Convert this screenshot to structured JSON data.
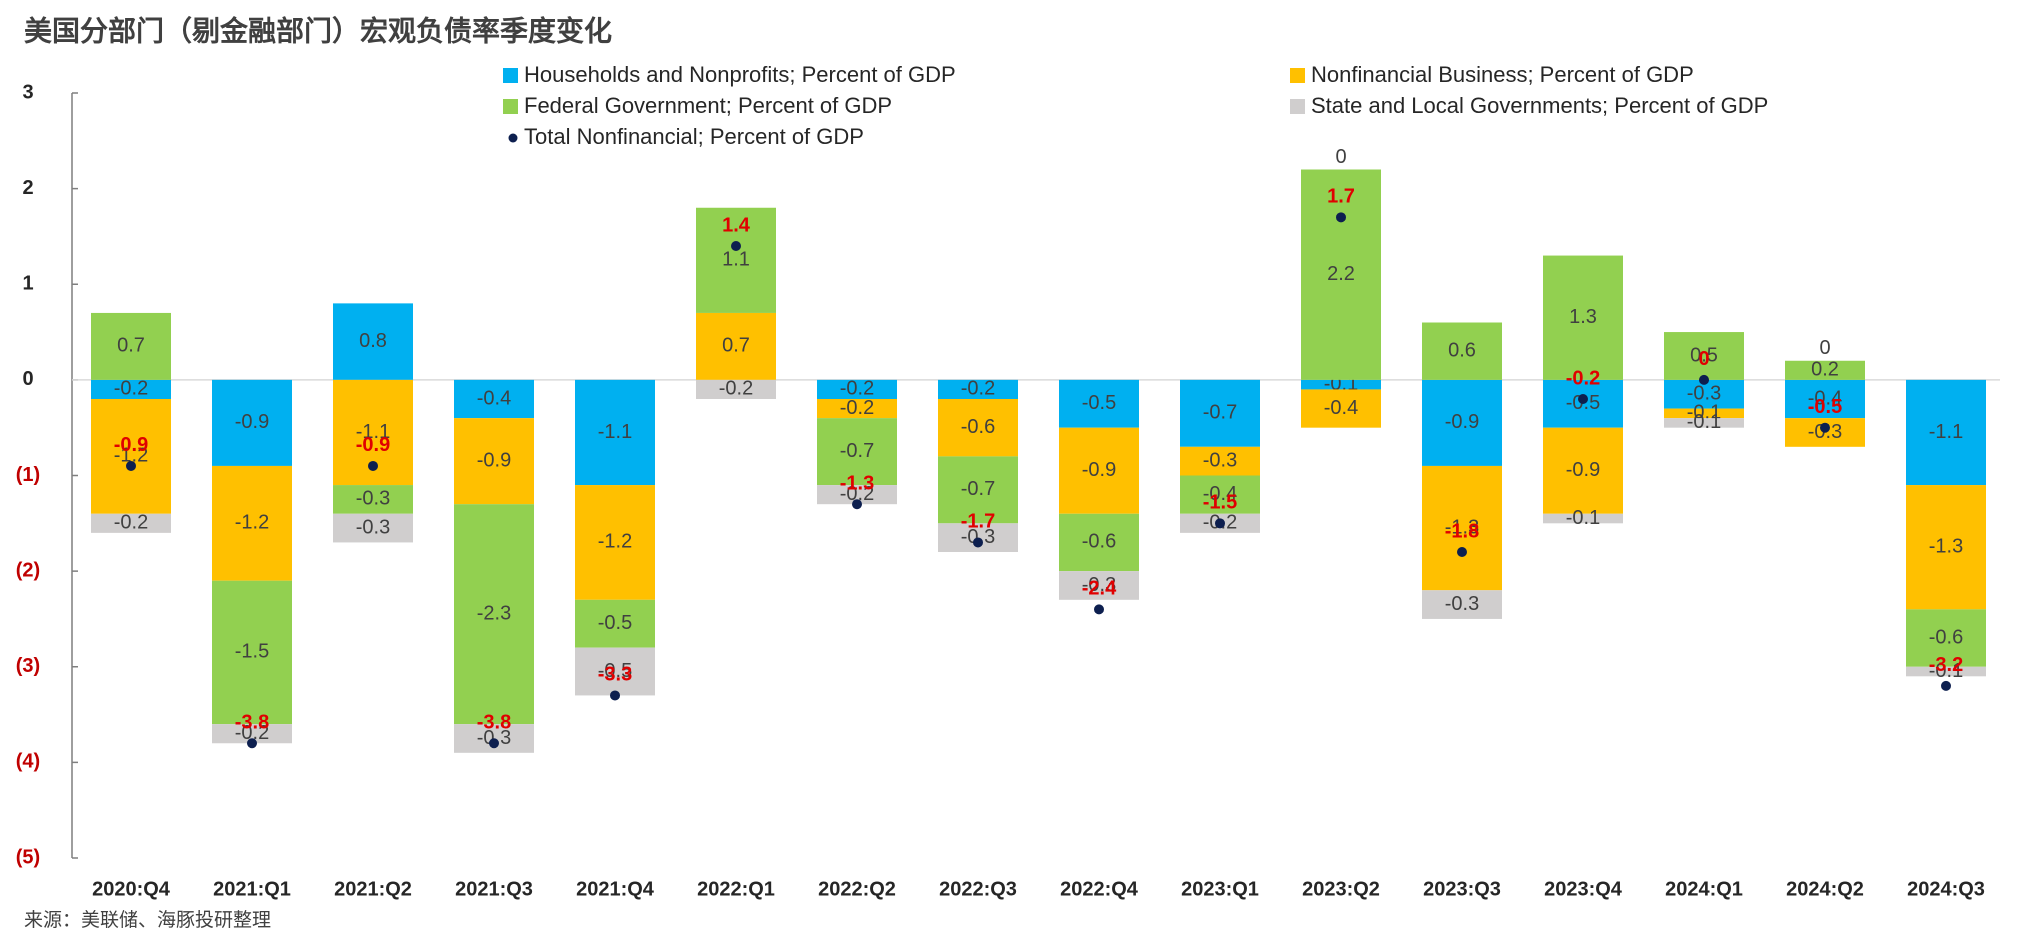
{
  "chart_data": {
    "type": "bar",
    "title": "美国分部门（剔金融部门）宏观负债率季度变化",
    "source": "来源：美联储、海豚投研整理",
    "categories": [
      "2020:Q4",
      "2021:Q1",
      "2021:Q2",
      "2021:Q3",
      "2021:Q4",
      "2022:Q1",
      "2022:Q2",
      "2022:Q3",
      "2022:Q4",
      "2023:Q1",
      "2023:Q2",
      "2023:Q3",
      "2023:Q4",
      "2024:Q1",
      "2024:Q2",
      "2024:Q3"
    ],
    "series": [
      {
        "name": "Households and Nonprofits; Percent of GDP",
        "color": "#00b0f0",
        "values": [
          -0.2,
          -0.9,
          0.8,
          -0.4,
          -1.1,
          0,
          -0.2,
          -0.2,
          -0.5,
          -0.7,
          -0.1,
          -0.9,
          -0.5,
          -0.3,
          -0.4,
          -1.1
        ]
      },
      {
        "name": "Nonfinancial Business; Percent of GDP",
        "color": "#ffc000",
        "values": [
          -1.2,
          -1.2,
          -1.1,
          -0.9,
          -1.2,
          0.7,
          -0.2,
          -0.6,
          -0.9,
          -0.3,
          -0.4,
          -1.3,
          -0.9,
          -0.1,
          -0.3,
          -1.3
        ]
      },
      {
        "name": "Federal Government; Percent of GDP",
        "color": "#92d050",
        "values": [
          0.7,
          -1.5,
          -0.3,
          -2.3,
          -0.5,
          1.1,
          -0.7,
          -0.7,
          -0.6,
          -0.4,
          2.2,
          0.6,
          1.3,
          0.5,
          0.2,
          -0.6
        ]
      },
      {
        "name": "State and Local Governments; Percent of GDP",
        "color": "#d0cece",
        "values": [
          -0.2,
          -0.2,
          -0.3,
          -0.3,
          -0.5,
          -0.2,
          -0.2,
          -0.3,
          -0.3,
          -0.2,
          0,
          -0.3,
          -0.1,
          -0.1,
          0,
          -0.1
        ]
      }
    ],
    "total": {
      "name": "Total Nonfinancial; Percent of GDP",
      "color": "#0d1f4f",
      "values": [
        -0.9,
        -3.8,
        -0.9,
        -3.8,
        -3.3,
        1.4,
        -1.3,
        -1.7,
        -2.4,
        -1.5,
        1.7,
        -1.8,
        -0.2,
        0,
        -0.5,
        -3.2
      ]
    },
    "ylim": [
      -5,
      3
    ],
    "yticks": [
      3,
      2,
      1,
      0,
      {
        "value": -1,
        "label": "(1)"
      },
      {
        "value": -2,
        "label": "(2)"
      },
      {
        "value": -3,
        "label": "(3)"
      },
      {
        "value": -4,
        "label": "(4)"
      },
      {
        "value": -5,
        "label": "(5)"
      }
    ]
  }
}
